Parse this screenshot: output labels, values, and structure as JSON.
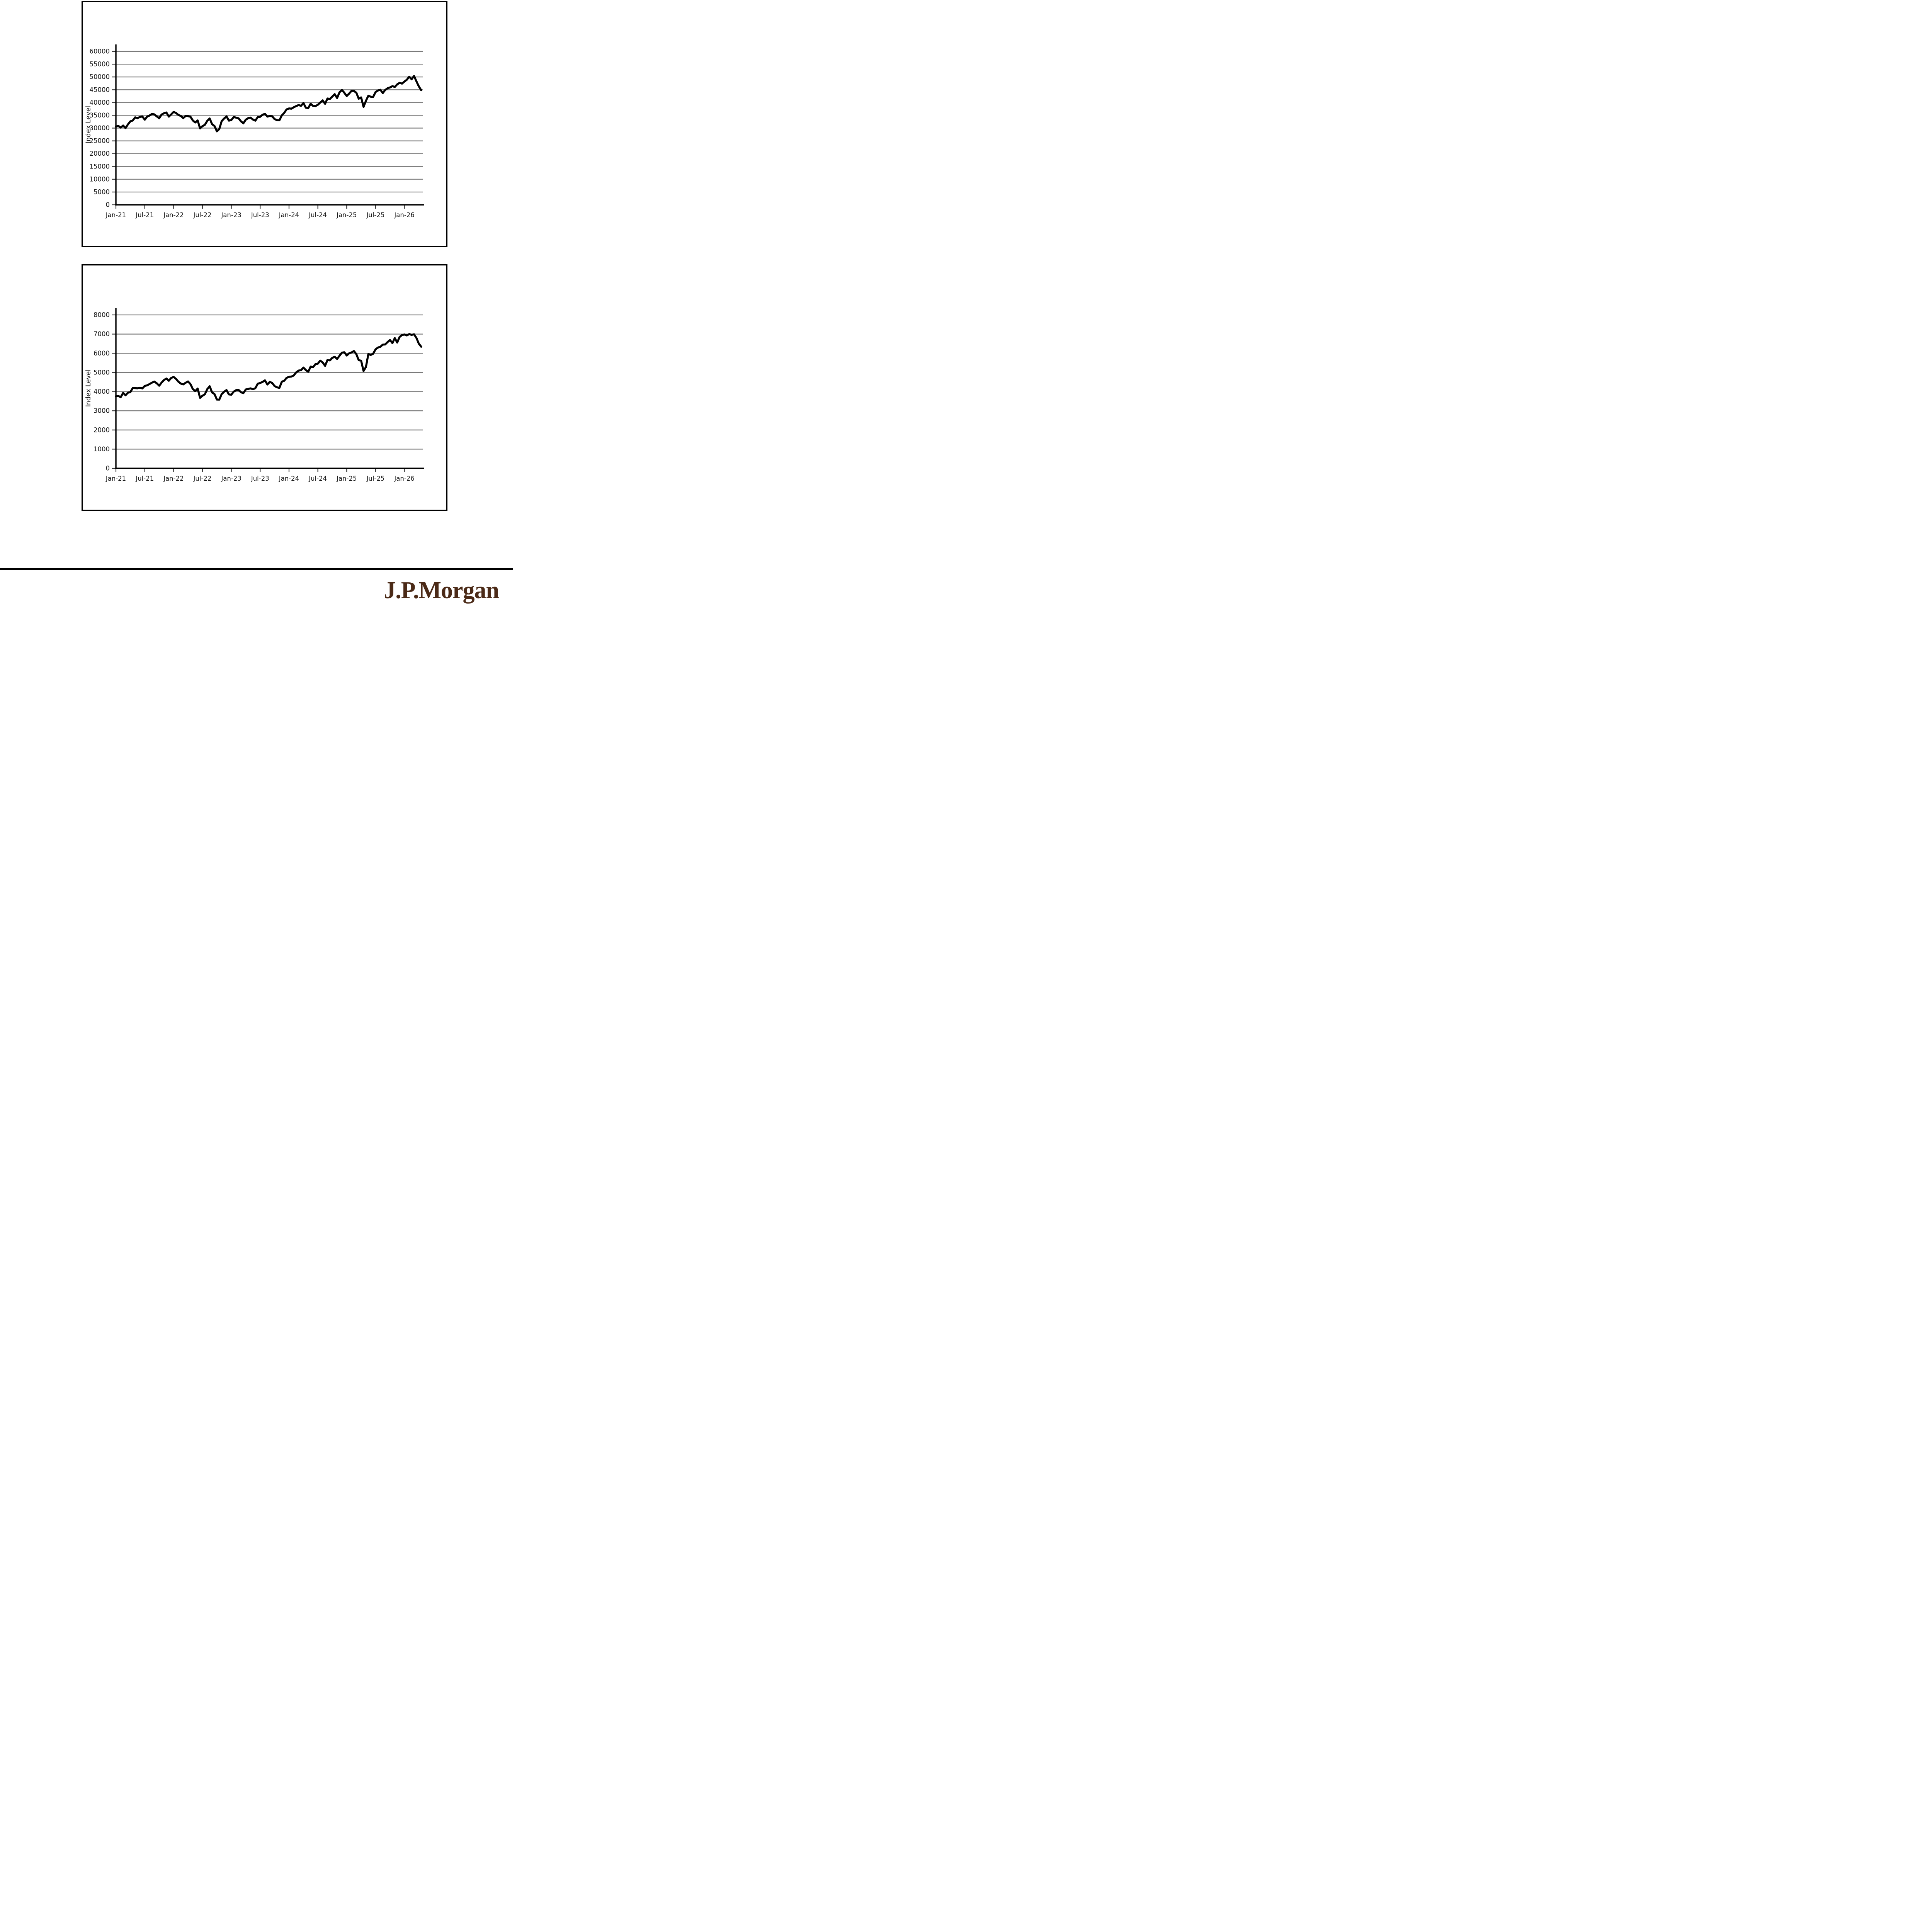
{
  "footer": {
    "logo_text": "J.P.Morgan",
    "logo_color": "#4b2a17"
  },
  "style": {
    "line_color": "#000000",
    "grid_color": "#7a7a7a",
    "axis_color": "#000000",
    "tick_label_color": "#151515"
  },
  "chart_data": [
    {
      "type": "line",
      "title": "",
      "xlabel": "",
      "ylabel": "Index Level",
      "grid": true,
      "legend": "none",
      "ylim": [
        0,
        62500
      ],
      "y_ticks": [
        0,
        5000,
        10000,
        15000,
        20000,
        25000,
        30000,
        35000,
        40000,
        45000,
        50000,
        55000,
        60000
      ],
      "x_tick_labels": [
        "Jan-21",
        "Jul-21",
        "Jan-22",
        "Jul-22",
        "Jan-23",
        "Jul-23",
        "Jan-24",
        "Jul-24",
        "Jan-25",
        "Jul-25",
        "Jan-26"
      ],
      "x_start_label": "Jan-21",
      "points_per_month": 2,
      "series": [
        {
          "name": "index_level",
          "values": [
            30600,
            30850,
            30200,
            31000,
            29983,
            31458,
            32628,
            32981,
            34201,
            33875,
            34382,
            34529,
            33290,
            34503,
            34935,
            35515,
            35361,
            34580,
            33844,
            35295,
            35820,
            36100,
            34484,
            35365,
            36338,
            35912,
            35132,
            34738,
            33893,
            34755,
            34678,
            34451,
            32977,
            32197,
            32990,
            29889,
            30775,
            31288,
            32845,
            33761,
            31510,
            30822,
            28726,
            29635,
            32733,
            33748,
            34590,
            32920,
            33147,
            34303,
            34086,
            33827,
            32657,
            31862,
            33274,
            33886,
            34098,
            33349,
            32908,
            34299,
            34408,
            35228,
            35560,
            34501,
            34722,
            34618,
            33508,
            33127,
            33053,
            34947,
            35951,
            37305,
            37690,
            37592,
            38150,
            38628,
            38996,
            38714,
            39807,
            37983,
            37816,
            39513,
            38686,
            38589,
            39119,
            40000,
            40843,
            39497,
            41563,
            41394,
            42330,
            43276,
            41763,
            43989,
            44911,
            43828,
            42544,
            43488,
            44545,
            44546,
            43841,
            41488,
            42002,
            38314,
            40669,
            42655,
            42270,
            42198,
            44095,
            44700,
            45000,
            43700,
            44900,
            45600,
            45900,
            46400,
            46100,
            47100,
            47700,
            47400,
            48200,
            48900,
            50100,
            49100,
            50400,
            48300,
            46300,
            44800
          ]
        }
      ]
    },
    {
      "type": "line",
      "title": "",
      "xlabel": "",
      "ylabel": "Index Level",
      "grid": true,
      "legend": "none",
      "ylim": [
        0,
        8350
      ],
      "y_ticks": [
        0,
        1000,
        2000,
        3000,
        4000,
        5000,
        6000,
        7000,
        8000
      ],
      "x_tick_labels": [
        "Jan-21",
        "Jul-21",
        "Jan-22",
        "Jul-22",
        "Jan-23",
        "Jul-23",
        "Jan-24",
        "Jul-24",
        "Jan-25",
        "Jul-25",
        "Jan-26"
      ],
      "x_start_label": "Jan-21",
      "points_per_month": 2,
      "series": [
        {
          "name": "index_level",
          "values": [
            3756,
            3768,
            3714,
            3934,
            3811,
            3943,
            3973,
            4185,
            4181,
            4174,
            4204,
            4166,
            4298,
            4327,
            4395,
            4468,
            4523,
            4433,
            4308,
            4471,
            4605,
            4683,
            4567,
            4713,
            4766,
            4663,
            4516,
            4419,
            4374,
            4463,
            4530,
            4393,
            4132,
            4024,
            4158,
            3675,
            3785,
            3863,
            4130,
            4280,
            3955,
            3873,
            3586,
            3583,
            3872,
            3993,
            4080,
            3852,
            3840,
            3999,
            4077,
            4090,
            3970,
            3917,
            4109,
            4138,
            4169,
            4124,
            4180,
            4410,
            4450,
            4505,
            4589,
            4370,
            4508,
            4450,
            4288,
            4224,
            4194,
            4514,
            4568,
            4719,
            4770,
            4784,
            4846,
            5006,
            5096,
            5117,
            5254,
            5123,
            5036,
            5303,
            5278,
            5432,
            5460,
            5615,
            5522,
            5344,
            5648,
            5626,
            5762,
            5815,
            5705,
            5871,
            6032,
            6051,
            5882,
            5997,
            6041,
            6115,
            5955,
            5639,
            5612,
            5074,
            5283,
            5958,
            5912,
            5977,
            6205,
            6297,
            6339,
            6450,
            6460,
            6584,
            6690,
            6530,
            6790,
            6560,
            6850,
            6950,
            6980,
            6930,
            7000,
            6960,
            6990,
            6800,
            6500,
            6340
          ]
        }
      ]
    }
  ]
}
